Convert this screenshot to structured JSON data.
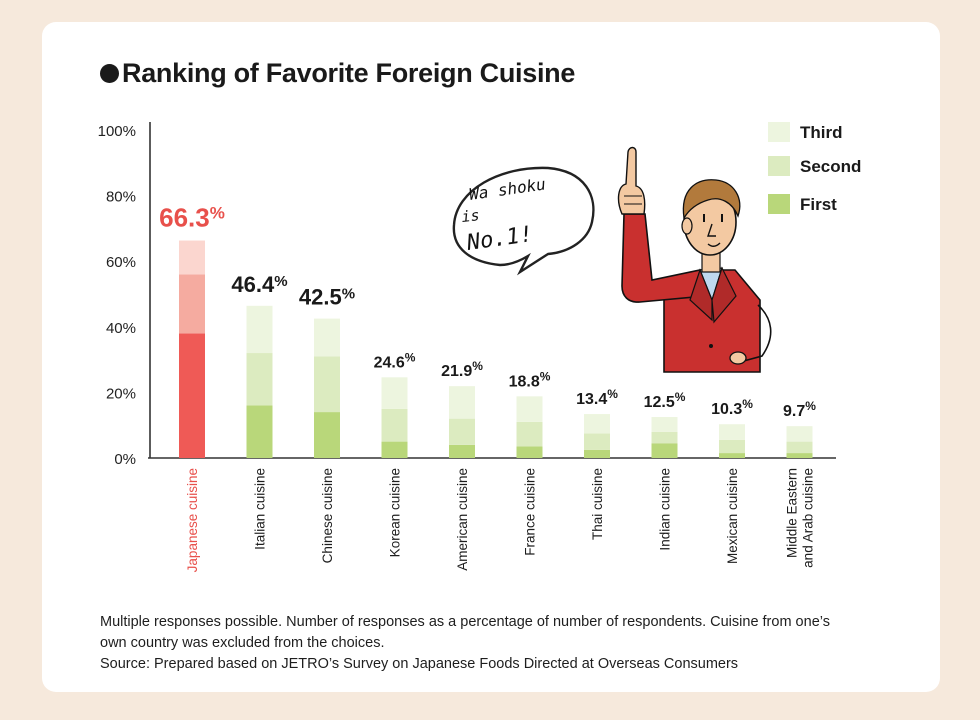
{
  "title": "Ranking of Favorite Foreign Cuisine",
  "notes": [
    "Multiple responses possible. Number of responses as a percentage of number of respondents.  Cuisine from one’s",
    "own country was excluded from the choices.",
    "Source: Prepared based on JETRO’s Survey on Japanese Foods Directed at Overseas Consumers"
  ],
  "speech_bubble": [
    "Wa shoku",
    "is",
    "No.1!"
  ],
  "colors": {
    "highlight_first": "#ef5a56",
    "highlight_second": "#f5aba0",
    "highlight_third": "#fbd6cf",
    "first": "#b9d77a",
    "second": "#dcebc0",
    "third": "#edf5df",
    "highlight_text": "#e8504b"
  },
  "chart_data": {
    "type": "bar",
    "stacked": true,
    "categories": [
      "Japanese cuisine",
      "Italian cuisine",
      "Chinese cuisine",
      "Korean cuisine",
      "American cuisine",
      "France cuisine",
      "Thai cuisine",
      "Indian cuisine",
      "Mexican cuisine",
      "Middle Eastern and Arab cuisine"
    ],
    "totals": [
      "66.3",
      "46.4",
      "42.5",
      "24.6",
      "21.9",
      "18.8",
      "13.4",
      "12.5",
      "10.3",
      "9.7"
    ],
    "total_unit": "%",
    "series": [
      {
        "name": "First",
        "values": [
          38.0,
          16.0,
          14.0,
          5.0,
          4.0,
          3.5,
          2.5,
          4.5,
          1.5,
          1.5
        ]
      },
      {
        "name": "Second",
        "values": [
          18.0,
          16.0,
          17.0,
          10.0,
          8.0,
          7.5,
          5.0,
          3.5,
          4.0,
          3.5
        ]
      },
      {
        "name": "Third",
        "values": [
          10.3,
          14.4,
          11.5,
          9.6,
          9.9,
          7.8,
          5.9,
          4.5,
          4.8,
          4.7
        ]
      }
    ],
    "legend": [
      "Third",
      "Second",
      "First"
    ],
    "legend_position": "top-right",
    "y_ticks": [
      "0%",
      "20%",
      "40%",
      "60%",
      "80%",
      "100%"
    ],
    "ylim": [
      0,
      100
    ],
    "grid": false,
    "highlight_index": 0
  }
}
